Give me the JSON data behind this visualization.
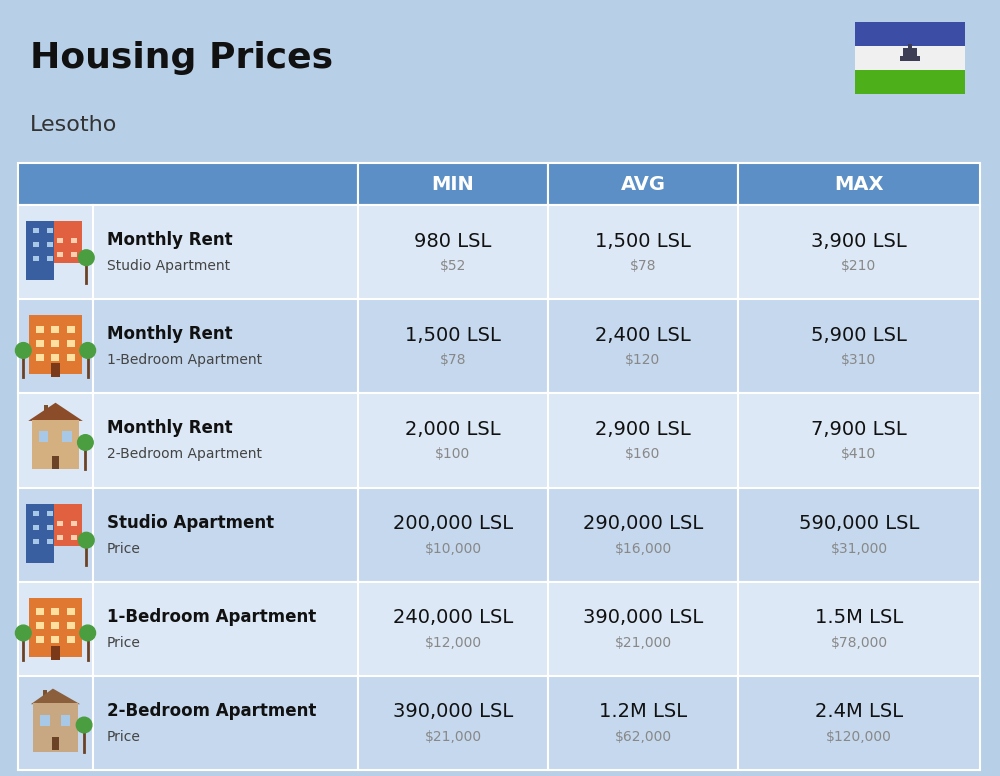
{
  "title": "Housing Prices",
  "subtitle": "Lesotho",
  "background_color": "#b8cfe8",
  "header_bg_color": "#5b8fc5",
  "header_text_color": "#ffffff",
  "row_bg_light": "#dce8f5",
  "row_bg_dark": "#c5d8ee",
  "border_color": "#ffffff",
  "col_headers": [
    "MIN",
    "AVG",
    "MAX"
  ],
  "rows": [
    {
      "icon_type": "blue_red",
      "label_bold": "Monthly Rent",
      "label_sub": "Studio Apartment",
      "min_lsl": "980 LSL",
      "min_usd": "$52",
      "avg_lsl": "1,500 LSL",
      "avg_usd": "$78",
      "max_lsl": "3,900 LSL",
      "max_usd": "$210"
    },
    {
      "icon_type": "orange",
      "label_bold": "Monthly Rent",
      "label_sub": "1-Bedroom Apartment",
      "min_lsl": "1,500 LSL",
      "min_usd": "$78",
      "avg_lsl": "2,400 LSL",
      "avg_usd": "$120",
      "max_lsl": "5,900 LSL",
      "max_usd": "$310"
    },
    {
      "icon_type": "house_brown",
      "label_bold": "Monthly Rent",
      "label_sub": "2-Bedroom Apartment",
      "min_lsl": "2,000 LSL",
      "min_usd": "$100",
      "avg_lsl": "2,900 LSL",
      "avg_usd": "$160",
      "max_lsl": "7,900 LSL",
      "max_usd": "$410"
    },
    {
      "icon_type": "blue_red",
      "label_bold": "Studio Apartment",
      "label_sub": "Price",
      "min_lsl": "200,000 LSL",
      "min_usd": "$10,000",
      "avg_lsl": "290,000 LSL",
      "avg_usd": "$16,000",
      "max_lsl": "590,000 LSL",
      "max_usd": "$31,000"
    },
    {
      "icon_type": "orange",
      "label_bold": "1-Bedroom Apartment",
      "label_sub": "Price",
      "min_lsl": "240,000 LSL",
      "min_usd": "$12,000",
      "avg_lsl": "390,000 LSL",
      "avg_usd": "$21,000",
      "max_lsl": "1.5M LSL",
      "max_usd": "$78,000"
    },
    {
      "icon_type": "house_brown2",
      "label_bold": "2-Bedroom Apartment",
      "label_sub": "Price",
      "min_lsl": "390,000 LSL",
      "min_usd": "$21,000",
      "avg_lsl": "1.2M LSL",
      "avg_usd": "$62,000",
      "max_lsl": "2.4M LSL",
      "max_usd": "$120,000"
    }
  ],
  "flag_blue": "#3c4da6",
  "flag_white": "#f0f0f0",
  "flag_green": "#4daf1a",
  "title_fontsize": 26,
  "subtitle_fontsize": 16,
  "header_fontsize": 14,
  "cell_lsl_fontsize": 14,
  "cell_usd_fontsize": 10,
  "label_bold_fontsize": 12,
  "label_sub_fontsize": 10
}
